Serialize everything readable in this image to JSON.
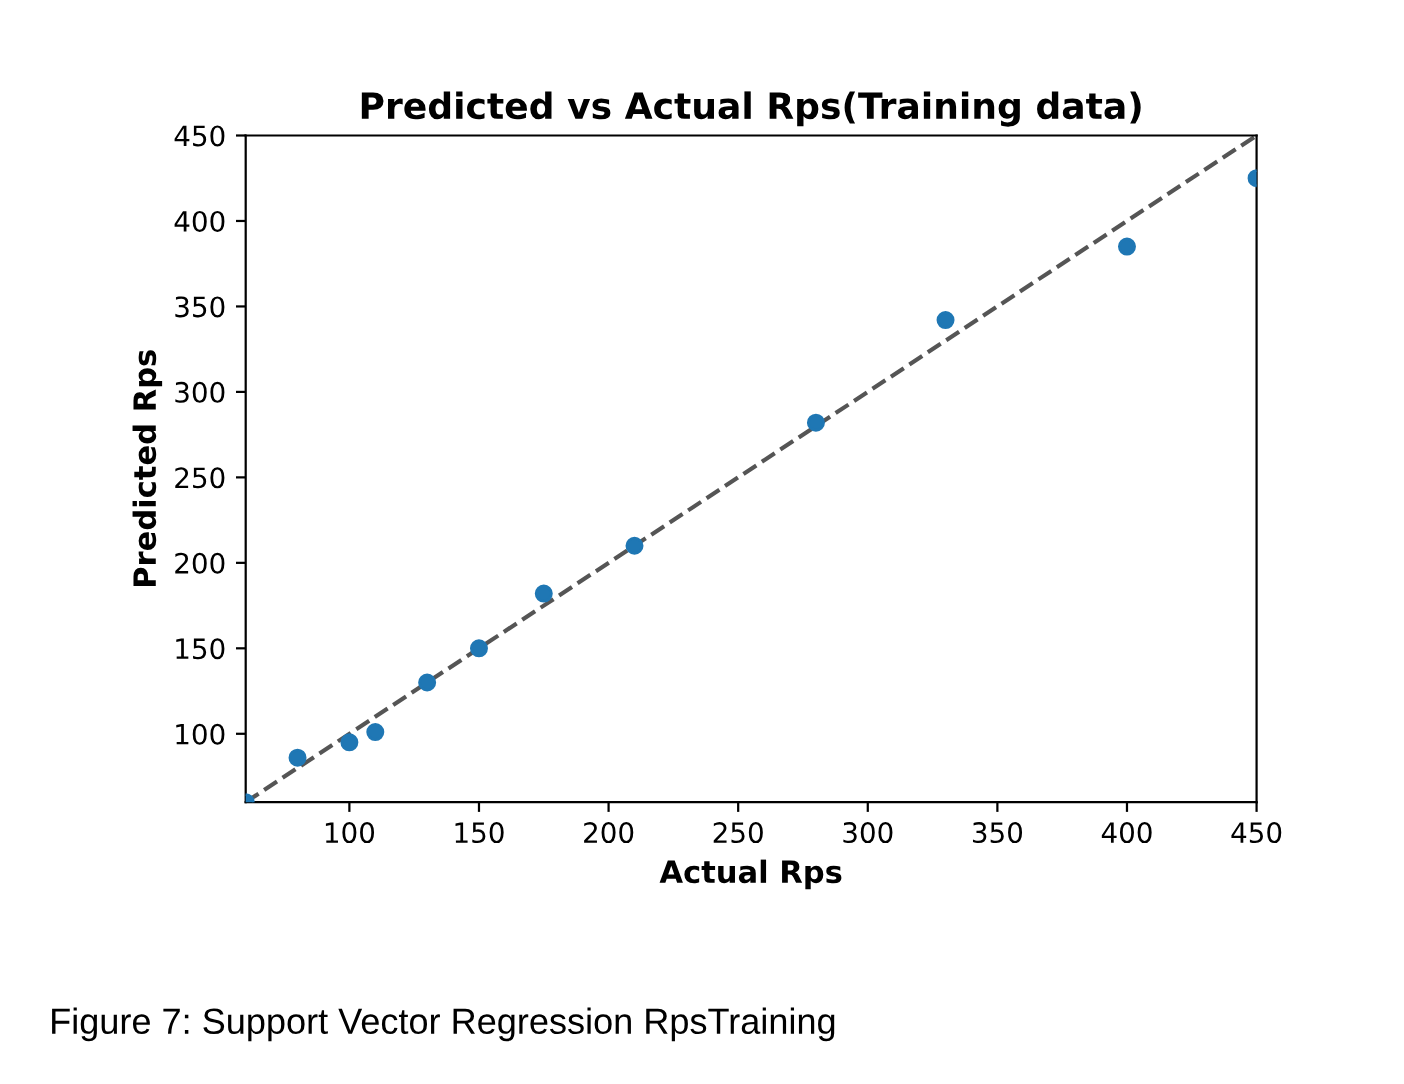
{
  "chart_data": {
    "type": "scatter",
    "title": "Predicted vs Actual Rps(Training data)",
    "xlabel": "Actual Rps",
    "ylabel": "Predicted Rps",
    "xlim": [
      60,
      450
    ],
    "ylim": [
      60,
      450
    ],
    "xticks": [
      100,
      150,
      200,
      250,
      300,
      350,
      400,
      450
    ],
    "yticks": [
      100,
      150,
      200,
      250,
      300,
      350,
      400,
      450
    ],
    "series": [
      {
        "color": "#1f77b4",
        "marker": "circle",
        "x": [
          60,
          80,
          100,
          110,
          130,
          150,
          175,
          210,
          280,
          330,
          400,
          450
        ],
        "values": [
          60,
          86,
          95,
          101,
          130,
          150,
          182,
          210,
          282,
          342,
          385,
          425
        ]
      },
      {
        "type": "line",
        "color": "#555555",
        "line_style": "dashed",
        "marker": "none",
        "x": [
          60,
          450
        ],
        "values": [
          60,
          450
        ]
      }
    ],
    "annotations": [
      "Figure 7: Support Vector Regression RpsTraining"
    ]
  }
}
